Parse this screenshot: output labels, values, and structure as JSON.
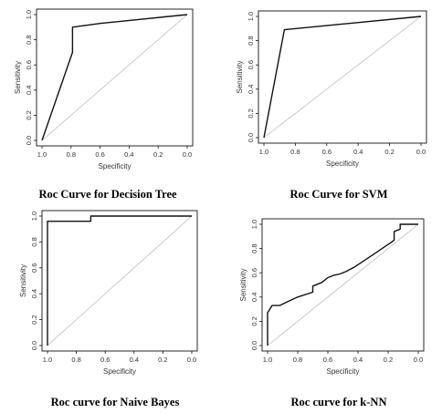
{
  "chart_data": [
    {
      "type": "line",
      "caption": "Roc Curve for Decision Tree",
      "xlabel": "Specificity",
      "ylabel": "Sensitivity",
      "xlim": [
        1.0,
        0.0
      ],
      "ylim": [
        0.0,
        1.0
      ],
      "x_ticks": [
        "1.0",
        "0.8",
        "0.6",
        "0.4",
        "0.2",
        "0.0"
      ],
      "y_ticks": [
        "0.0",
        "0.2",
        "0.4",
        "0.6",
        "0.8",
        "1.0"
      ],
      "series": [
        {
          "specificity": [
            1.0,
            0.79,
            0.79,
            0.6,
            0.0
          ],
          "sensitivity": [
            0.0,
            0.7,
            0.9,
            0.93,
            1.0
          ]
        }
      ]
    },
    {
      "type": "line",
      "caption": "Roc Curve for SVM",
      "xlabel": "Specificity",
      "ylabel": "Sensitivity",
      "xlim": [
        1.0,
        0.0
      ],
      "ylim": [
        0.0,
        1.0
      ],
      "x_ticks": [
        "1.0",
        "0.8",
        "0.6",
        "0.4",
        "0.2",
        "0.0"
      ],
      "y_ticks": [
        "0.0",
        "0.2",
        "0.4",
        "0.6",
        "0.8",
        "1.0"
      ],
      "series": [
        {
          "specificity": [
            1.0,
            0.87,
            0.0
          ],
          "sensitivity": [
            0.0,
            0.89,
            1.0
          ]
        }
      ]
    },
    {
      "type": "line",
      "caption": "Roc curve for Naive Bayes",
      "xlabel": "Specificity",
      "ylabel": "Sensitivity",
      "xlim": [
        1.0,
        0.0
      ],
      "ylim": [
        0.0,
        1.0
      ],
      "x_ticks": [
        "1.0",
        "0.8",
        "0.6",
        "0.4",
        "0.2",
        "0.0"
      ],
      "y_ticks": [
        "0.0",
        "0.2",
        "0.4",
        "0.6",
        "0.8",
        "1.0"
      ],
      "series": [
        {
          "specificity": [
            1.0,
            1.0,
            0.7,
            0.7,
            0.0
          ],
          "sensitivity": [
            0.0,
            0.96,
            0.96,
            1.0,
            1.0
          ]
        }
      ]
    },
    {
      "type": "line",
      "caption": "Roc curve for k-NN",
      "xlabel": "Specificity",
      "ylabel": "Sensitivity",
      "xlim": [
        1.0,
        0.0
      ],
      "ylim": [
        0.0,
        1.0
      ],
      "x_ticks": [
        "1.0",
        "0.8",
        "0.6",
        "0.4",
        "0.2",
        "0.0"
      ],
      "y_ticks": [
        "0.0",
        "0.2",
        "0.4",
        "0.6",
        "0.8",
        "1.0"
      ],
      "series": [
        {
          "specificity": [
            1.0,
            1.0,
            0.97,
            0.92,
            0.87,
            0.8,
            0.7,
            0.7,
            0.64,
            0.62,
            0.6,
            0.56,
            0.52,
            0.48,
            0.42,
            0.36,
            0.3,
            0.24,
            0.18,
            0.16,
            0.16,
            0.12,
            0.12,
            0.03,
            0.0
          ],
          "sensitivity": [
            0.0,
            0.27,
            0.33,
            0.33,
            0.36,
            0.4,
            0.44,
            0.49,
            0.52,
            0.54,
            0.56,
            0.58,
            0.59,
            0.61,
            0.65,
            0.7,
            0.75,
            0.8,
            0.85,
            0.87,
            0.94,
            0.96,
            1.0,
            1.0,
            1.0
          ]
        }
      ]
    }
  ]
}
